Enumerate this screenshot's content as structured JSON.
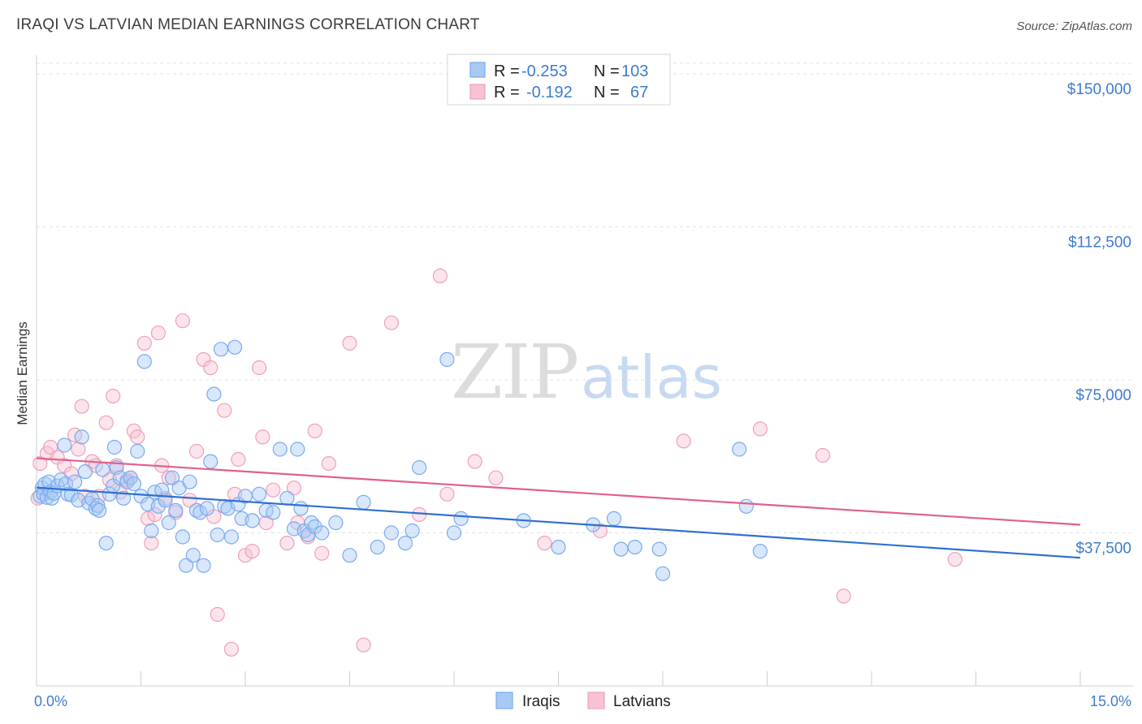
{
  "title": "IRAQI VS LATVIAN MEDIAN EARNINGS CORRELATION CHART",
  "source": "Source: ZipAtlas.com",
  "watermark": {
    "zip": "ZIP",
    "atlas": "atlas"
  },
  "colors": {
    "iraqis": "#7aaaf0",
    "iraqis_fill": "#a9c9f5",
    "iraqis_line": "#2f6fd0",
    "latvians": "#f0a0b8",
    "latvians_fill": "#f7c3d3",
    "latvians_line": "#e0608a",
    "tick_text": "#3d7bd0"
  },
  "legend_box": {
    "rows": [
      {
        "r_label": "R = ",
        "r_value": "-0.253",
        "n_label": "N = ",
        "n_value": "103"
      },
      {
        "r_label": "R = ",
        "r_value": "-0.192",
        "n_label": "N = ",
        "n_value": "67"
      }
    ]
  },
  "chart_data": {
    "type": "scatter",
    "title": "IRAQI VS LATVIAN MEDIAN EARNINGS CORRELATION CHART",
    "xlabel": "",
    "ylabel": "Median Earnings",
    "xlim": [
      0,
      15
    ],
    "ylim": [
      0,
      153000
    ],
    "x_tick_labels": [
      "0.0%",
      "15.0%"
    ],
    "y_ticks": [
      37500,
      75000,
      112500,
      150000
    ],
    "y_tick_labels": [
      "$37,500",
      "$75,000",
      "$112,500",
      "$150,000"
    ],
    "grid": true,
    "legend_position": "bottom-center",
    "series": [
      {
        "name": "Iraqis",
        "r": -0.253,
        "n": 103,
        "trend": {
          "x": [
            0,
            15
          ],
          "y": [
            48600,
            31400
          ]
        },
        "points": [
          [
            0.05,
            46500
          ],
          [
            0.08,
            48500
          ],
          [
            0.1,
            47000
          ],
          [
            0.12,
            49500
          ],
          [
            0.15,
            46200
          ],
          [
            0.18,
            50000
          ],
          [
            0.2,
            47500
          ],
          [
            0.22,
            46000
          ],
          [
            0.25,
            47200
          ],
          [
            0.3,
            49000
          ],
          [
            0.35,
            50500
          ],
          [
            0.4,
            59000
          ],
          [
            0.42,
            49500
          ],
          [
            0.45,
            47000
          ],
          [
            0.5,
            46800
          ],
          [
            0.55,
            50000
          ],
          [
            0.6,
            45500
          ],
          [
            0.65,
            61000
          ],
          [
            0.7,
            52500
          ],
          [
            0.75,
            44800
          ],
          [
            0.8,
            45800
          ],
          [
            0.85,
            43500
          ],
          [
            0.88,
            44200
          ],
          [
            0.9,
            43000
          ],
          [
            0.95,
            53000
          ],
          [
            1.0,
            35000
          ],
          [
            1.05,
            47000
          ],
          [
            1.1,
            49000
          ],
          [
            1.12,
            58500
          ],
          [
            1.15,
            53500
          ],
          [
            1.2,
            51000
          ],
          [
            1.25,
            46000
          ],
          [
            1.3,
            50000
          ],
          [
            1.35,
            51000
          ],
          [
            1.4,
            49500
          ],
          [
            1.45,
            57500
          ],
          [
            1.5,
            46500
          ],
          [
            1.55,
            79500
          ],
          [
            1.6,
            44500
          ],
          [
            1.65,
            38000
          ],
          [
            1.7,
            47500
          ],
          [
            1.75,
            44000
          ],
          [
            1.8,
            48000
          ],
          [
            1.85,
            45500
          ],
          [
            1.9,
            40000
          ],
          [
            1.95,
            51000
          ],
          [
            2.0,
            43000
          ],
          [
            2.05,
            48500
          ],
          [
            2.1,
            36500
          ],
          [
            2.15,
            29500
          ],
          [
            2.2,
            50000
          ],
          [
            2.25,
            32000
          ],
          [
            2.3,
            43000
          ],
          [
            2.35,
            42500
          ],
          [
            2.4,
            29500
          ],
          [
            2.45,
            43500
          ],
          [
            2.5,
            55000
          ],
          [
            2.55,
            71500
          ],
          [
            2.6,
            37000
          ],
          [
            2.65,
            82500
          ],
          [
            2.7,
            44000
          ],
          [
            2.75,
            43500
          ],
          [
            2.8,
            36500
          ],
          [
            2.85,
            83000
          ],
          [
            2.9,
            44500
          ],
          [
            2.95,
            41000
          ],
          [
            3.0,
            46500
          ],
          [
            3.1,
            40500
          ],
          [
            3.2,
            47000
          ],
          [
            3.3,
            43000
          ],
          [
            3.4,
            42500
          ],
          [
            3.5,
            58000
          ],
          [
            3.6,
            46000
          ],
          [
            3.7,
            38500
          ],
          [
            3.75,
            58000
          ],
          [
            3.8,
            43500
          ],
          [
            3.85,
            38000
          ],
          [
            3.9,
            37000
          ],
          [
            3.95,
            40000
          ],
          [
            4.0,
            39000
          ],
          [
            4.1,
            37500
          ],
          [
            4.3,
            40000
          ],
          [
            4.5,
            32000
          ],
          [
            4.7,
            45000
          ],
          [
            4.9,
            34000
          ],
          [
            5.1,
            37500
          ],
          [
            5.3,
            35000
          ],
          [
            5.4,
            38000
          ],
          [
            5.5,
            53500
          ],
          [
            5.9,
            80000
          ],
          [
            6.0,
            37500
          ],
          [
            6.1,
            41000
          ],
          [
            7.0,
            40500
          ],
          [
            7.5,
            34000
          ],
          [
            8.0,
            39500
          ],
          [
            8.3,
            41000
          ],
          [
            8.4,
            33500
          ],
          [
            8.6,
            34000
          ],
          [
            8.95,
            33500
          ],
          [
            9.0,
            27500
          ],
          [
            10.1,
            58000
          ],
          [
            10.2,
            44000
          ],
          [
            10.4,
            33000
          ]
        ]
      },
      {
        "name": "Latvians",
        "r": -0.192,
        "n": 67,
        "trend": {
          "x": [
            0,
            15
          ],
          "y": [
            55800,
            39500
          ]
        },
        "points": [
          [
            0.02,
            46000
          ],
          [
            0.05,
            54500
          ],
          [
            0.15,
            57000
          ],
          [
            0.2,
            58500
          ],
          [
            0.3,
            56000
          ],
          [
            0.4,
            54000
          ],
          [
            0.5,
            52000
          ],
          [
            0.55,
            61500
          ],
          [
            0.6,
            58000
          ],
          [
            0.65,
            68500
          ],
          [
            0.7,
            46500
          ],
          [
            0.8,
            55000
          ],
          [
            0.85,
            54000
          ],
          [
            0.9,
            46500
          ],
          [
            1.0,
            64500
          ],
          [
            1.05,
            50500
          ],
          [
            1.1,
            71000
          ],
          [
            1.15,
            54000
          ],
          [
            1.2,
            47500
          ],
          [
            1.3,
            50500
          ],
          [
            1.35,
            51000
          ],
          [
            1.4,
            62500
          ],
          [
            1.45,
            61000
          ],
          [
            1.55,
            84000
          ],
          [
            1.6,
            41000
          ],
          [
            1.65,
            35000
          ],
          [
            1.7,
            42000
          ],
          [
            1.75,
            86500
          ],
          [
            1.8,
            54000
          ],
          [
            1.85,
            46000
          ],
          [
            1.9,
            51000
          ],
          [
            2.0,
            42500
          ],
          [
            2.1,
            89500
          ],
          [
            2.2,
            45500
          ],
          [
            2.3,
            57500
          ],
          [
            2.4,
            80000
          ],
          [
            2.5,
            78000
          ],
          [
            2.55,
            41500
          ],
          [
            2.6,
            17500
          ],
          [
            2.7,
            67500
          ],
          [
            2.8,
            9000
          ],
          [
            2.85,
            47000
          ],
          [
            2.9,
            55500
          ],
          [
            3.0,
            32000
          ],
          [
            3.1,
            33000
          ],
          [
            3.2,
            78000
          ],
          [
            3.25,
            61000
          ],
          [
            3.3,
            40000
          ],
          [
            3.4,
            48000
          ],
          [
            3.6,
            35000
          ],
          [
            3.7,
            48500
          ],
          [
            3.75,
            40000
          ],
          [
            3.9,
            36500
          ],
          [
            4.0,
            62500
          ],
          [
            4.1,
            32500
          ],
          [
            4.2,
            54500
          ],
          [
            4.5,
            84000
          ],
          [
            4.7,
            10000
          ],
          [
            5.1,
            89000
          ],
          [
            5.5,
            42000
          ],
          [
            5.8,
            100500
          ],
          [
            5.9,
            47000
          ],
          [
            6.3,
            55000
          ],
          [
            6.6,
            51000
          ],
          [
            7.3,
            35000
          ],
          [
            8.1,
            38000
          ],
          [
            9.3,
            60000
          ]
        ]
      }
    ],
    "extra_latvian_points": [
      [
        10.4,
        63000
      ],
      [
        11.3,
        56500
      ],
      [
        11.6,
        22000
      ],
      [
        13.2,
        31000
      ]
    ]
  }
}
